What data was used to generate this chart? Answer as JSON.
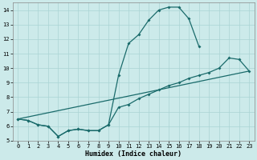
{
  "xlabel": "Humidex (Indice chaleur)",
  "bg_color": "#cceaea",
  "grid_color": "#aad4d4",
  "line_color": "#1a6b6b",
  "xlim": [
    -0.5,
    23.5
  ],
  "ylim": [
    5,
    14.5
  ],
  "xticks": [
    0,
    1,
    2,
    3,
    4,
    5,
    6,
    7,
    8,
    9,
    10,
    11,
    12,
    13,
    14,
    15,
    16,
    17,
    18,
    19,
    20,
    21,
    22,
    23
  ],
  "yticks": [
    5,
    6,
    7,
    8,
    9,
    10,
    11,
    12,
    13,
    14
  ],
  "series1_x": [
    0,
    1,
    2,
    3,
    4,
    5,
    6,
    7,
    8,
    9,
    10,
    11,
    12,
    13,
    14,
    15,
    16,
    17,
    18
  ],
  "series1_y": [
    6.5,
    6.4,
    6.1,
    6.0,
    5.3,
    5.7,
    5.8,
    5.7,
    5.7,
    6.1,
    9.5,
    11.7,
    12.3,
    13.3,
    14.0,
    14.2,
    14.2,
    13.4,
    11.5
  ],
  "series2_x": [
    0,
    1,
    2,
    3,
    4,
    5,
    6,
    7,
    8,
    9,
    10,
    11,
    12,
    13,
    14,
    15,
    16,
    17,
    18,
    19,
    20,
    21,
    22,
    23
  ],
  "series2_y": [
    6.5,
    6.4,
    6.1,
    6.0,
    5.3,
    5.7,
    5.8,
    5.7,
    5.7,
    6.1,
    7.3,
    7.5,
    7.9,
    8.2,
    8.5,
    8.8,
    9.0,
    9.3,
    9.5,
    9.7,
    10.0,
    10.7,
    10.6,
    9.8
  ],
  "series3_x": [
    0,
    23
  ],
  "series3_y": [
    6.5,
    9.8
  ]
}
